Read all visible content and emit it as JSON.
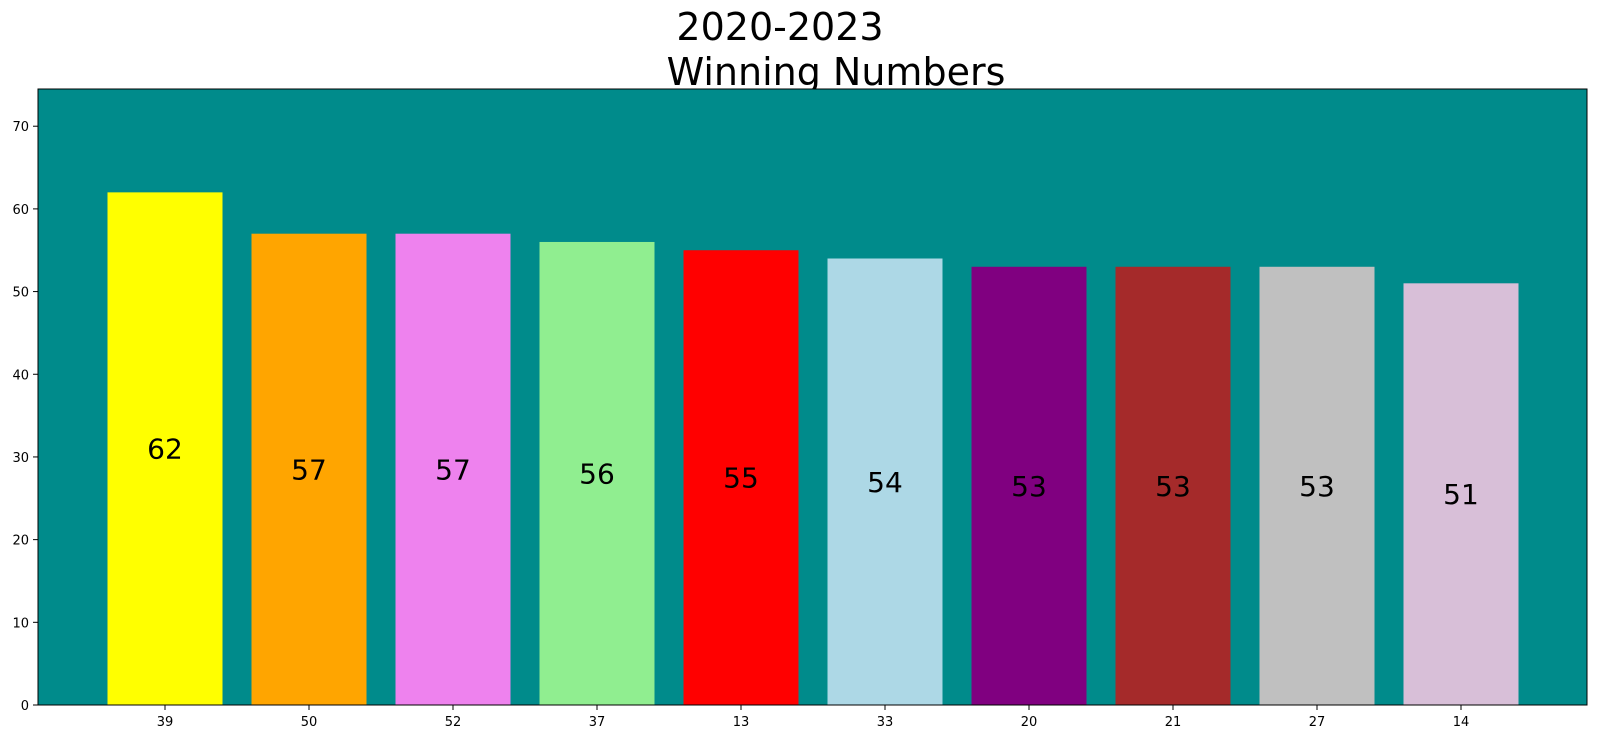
{
  "chart_data": {
    "type": "bar",
    "title_lines": [
      "2020-2023",
      "Winning Numbers"
    ],
    "xlabel": "",
    "ylabel": "",
    "categories": [
      "39",
      "50",
      "52",
      "37",
      "13",
      "33",
      "20",
      "21",
      "27",
      "14"
    ],
    "values": [
      62,
      57,
      57,
      56,
      55,
      54,
      53,
      53,
      53,
      51
    ],
    "bar_colors": [
      "#ffff00",
      "#ffa500",
      "#ee82ee",
      "#90ee90",
      "#ff0000",
      "#add8e6",
      "#800080",
      "#a52a2a",
      "#c0c0c0",
      "#d8bfd8"
    ],
    "plot_background": "#008b8b",
    "ylim": [
      0,
      74.5
    ],
    "yticks": [
      0,
      10,
      20,
      30,
      40,
      50,
      60,
      70
    ],
    "grid": false,
    "legend": "none",
    "data_labels": "value shown at half bar height"
  }
}
